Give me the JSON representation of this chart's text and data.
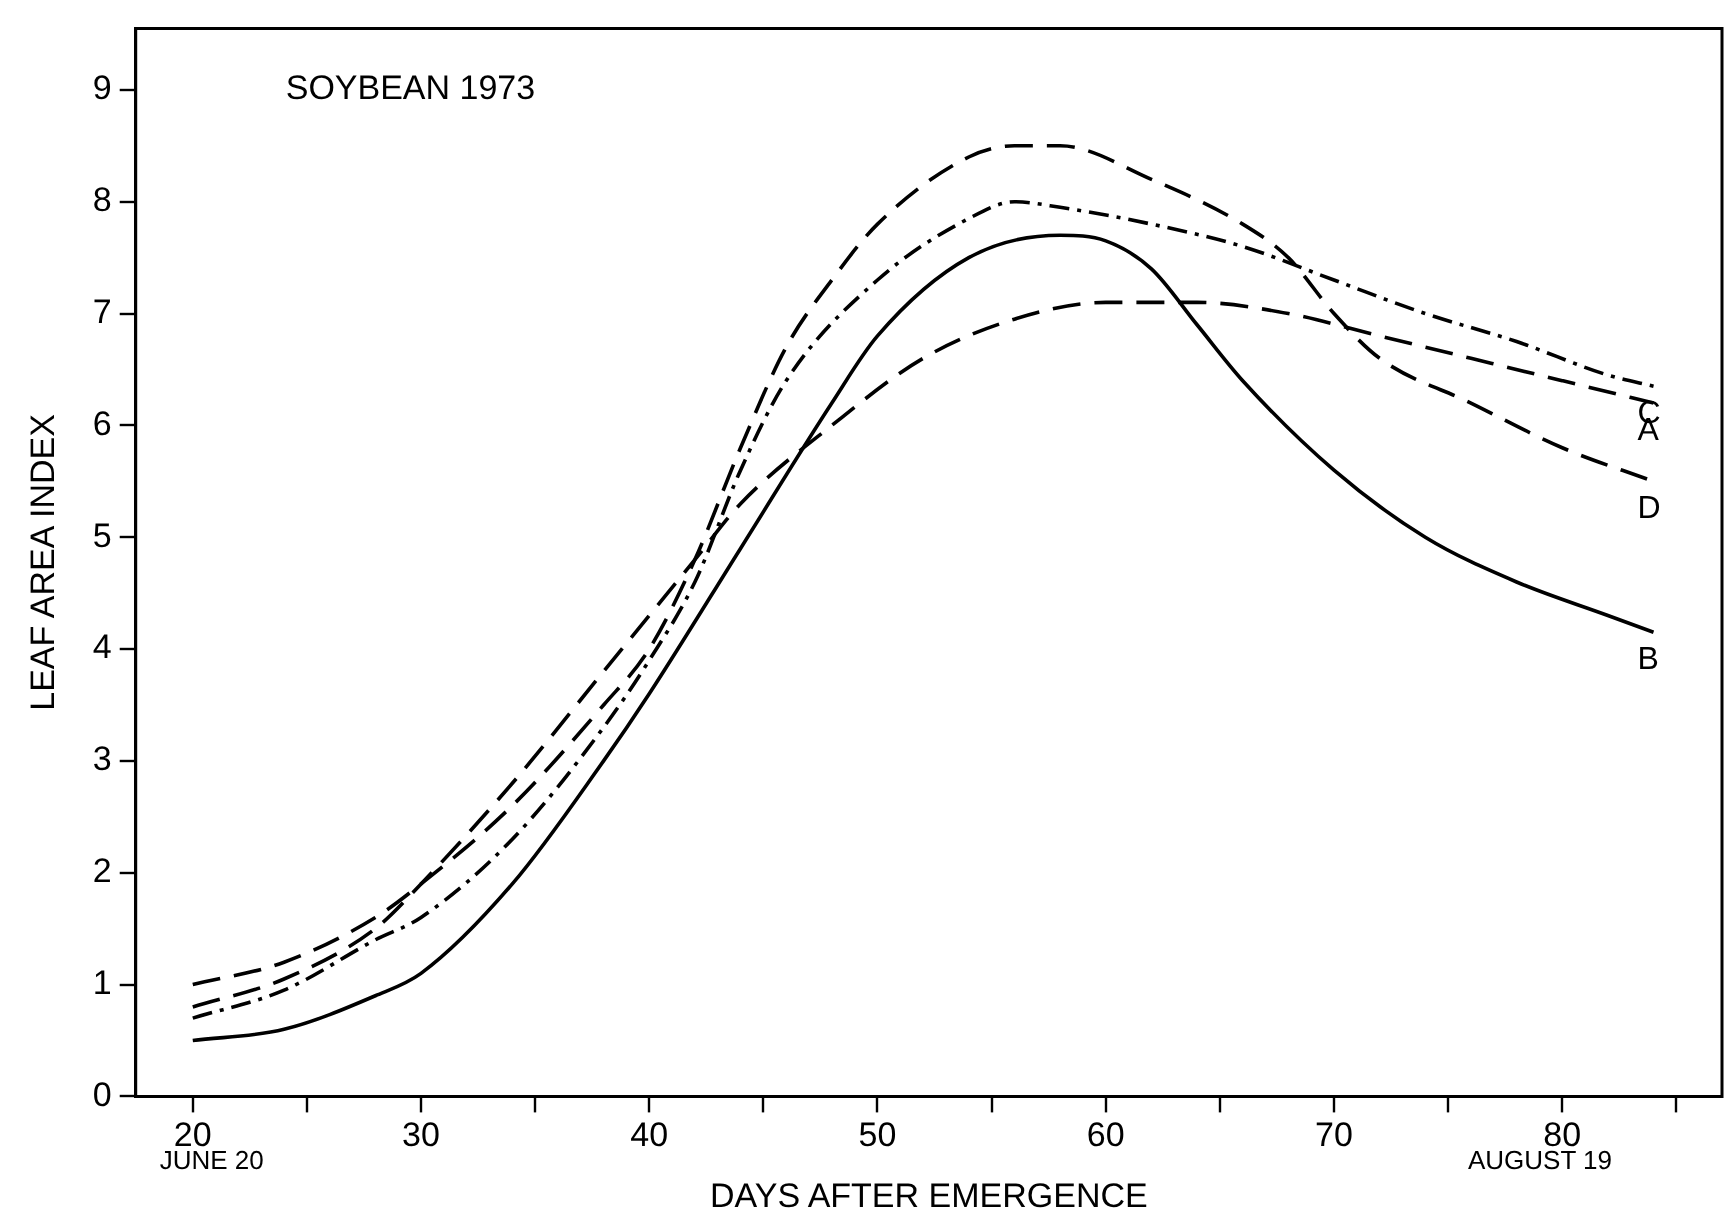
{
  "chart_data": {
    "type": "line",
    "title": "SOYBEAN 1973",
    "xlabel": "DAYS AFTER EMERGENCE",
    "ylabel": "LEAF AREA INDEX",
    "xlim": [
      17.5,
      87
    ],
    "xticks": [
      20,
      {
        "value": 25,
        "label": null
      },
      30,
      {
        "value": 35,
        "label": null
      },
      40,
      {
        "value": 45,
        "label": null
      },
      50,
      {
        "value": 55,
        "label": null
      },
      60,
      {
        "value": 65,
        "label": null
      },
      70,
      {
        "value": 75,
        "label": null
      },
      80,
      {
        "value": 85,
        "label": null
      }
    ],
    "ylim": [
      0,
      9.55
    ],
    "yticks": [
      0,
      1,
      2,
      3,
      4,
      5,
      6,
      7,
      8,
      9
    ],
    "grid": false,
    "legend": false,
    "marker": "none",
    "annotations": [
      "JUNE 20",
      "AUGUST 19"
    ],
    "series": [
      {
        "name": "C",
        "color": "#000000",
        "line_style": "dashdot",
        "x": [
          20,
          24,
          28,
          30,
          34,
          38,
          40,
          42,
          44,
          46,
          50,
          54,
          56,
          58,
          62,
          66,
          70,
          74,
          78,
          82,
          84
        ],
        "values": [
          0.7,
          0.95,
          1.4,
          1.6,
          2.3,
          3.3,
          3.9,
          4.6,
          5.6,
          6.4,
          7.3,
          7.85,
          8.0,
          7.95,
          7.8,
          7.6,
          7.3,
          7.0,
          6.75,
          6.45,
          6.35
        ]
      },
      {
        "name": "A",
        "color": "#000000",
        "line_style": "dashed",
        "x": [
          20,
          24,
          28,
          30,
          34,
          38,
          40,
          42,
          44,
          48,
          52,
          56,
          60,
          64,
          68,
          72,
          76,
          80,
          84
        ],
        "values": [
          0.8,
          1.05,
          1.5,
          1.9,
          2.8,
          3.8,
          4.3,
          4.8,
          5.3,
          6.0,
          6.6,
          6.95,
          7.1,
          7.1,
          7.0,
          6.8,
          6.6,
          6.4,
          6.2
        ]
      },
      {
        "name": "D",
        "color": "#000000",
        "line_style": "dashed",
        "x": [
          20,
          24,
          28,
          30,
          34,
          38,
          40,
          42,
          44,
          46,
          48,
          50,
          54,
          56,
          58,
          62,
          66,
          68,
          70,
          72,
          76,
          80,
          84
        ],
        "values": [
          1.0,
          1.2,
          1.6,
          1.9,
          2.6,
          3.5,
          4.0,
          4.8,
          5.8,
          6.7,
          7.3,
          7.8,
          8.4,
          8.5,
          8.5,
          8.2,
          7.8,
          7.5,
          7.0,
          6.6,
          6.2,
          5.8,
          5.5
        ]
      },
      {
        "name": "B",
        "color": "#000000",
        "line_style": "solid",
        "x": [
          20,
          24,
          28,
          30,
          34,
          38,
          40,
          44,
          48,
          50,
          54,
          58,
          60,
          62,
          64,
          66,
          70,
          74,
          78,
          82,
          84
        ],
        "values": [
          0.5,
          0.6,
          0.9,
          1.1,
          1.9,
          3.0,
          3.6,
          4.9,
          6.2,
          6.8,
          7.5,
          7.7,
          7.65,
          7.4,
          6.9,
          6.4,
          5.6,
          5.0,
          4.6,
          4.3,
          4.15
        ]
      }
    ]
  }
}
